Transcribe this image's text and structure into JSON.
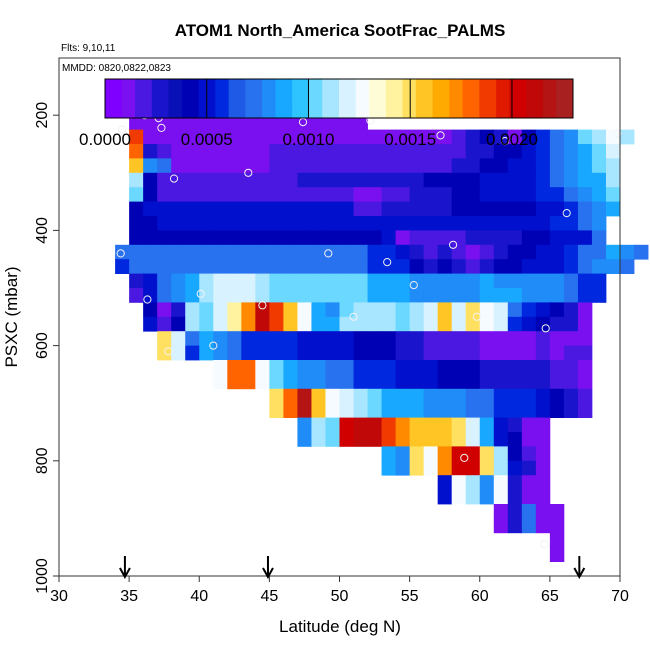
{
  "chart_data": {
    "type": "heatmap",
    "title": "ATOM1 North_America SootFrac_PALMS",
    "annotations": [
      "Flts: 9,10,11",
      "MMDD: 0820,0822,0823"
    ],
    "xlabel": "Latitude (deg N)",
    "ylabel": "PSXC (mbar)",
    "xlim": [
      30,
      70
    ],
    "ylim": [
      1000,
      0
    ],
    "x_ticks": [
      "30",
      "35",
      "40",
      "45",
      "50",
      "55",
      "60",
      "65",
      "70"
    ],
    "y_ticks": [
      "200",
      "400",
      "600",
      "800",
      "1000"
    ],
    "colorbar": {
      "range": [
        0,
        0.0023
      ],
      "tick_values": [
        0,
        0.0005,
        0.001,
        0.0015,
        0.002
      ],
      "tick_labels": [
        "0.0000",
        "0.0005",
        "0.0010",
        "0.0015",
        "0.0020"
      ]
    },
    "cell_size": {
      "lat": 1,
      "pressure": 25
    },
    "value_scale": 0.0001,
    "rows": [
      {
        "p": 175,
        "lat0": 35,
        "v": [
          1,
          1,
          1,
          1,
          1,
          1,
          1,
          1,
          1,
          1,
          1,
          1,
          1,
          1,
          1,
          1,
          1
        ]
      },
      {
        "p": 200,
        "lat0": 35,
        "v": [
          1,
          1,
          1,
          1,
          1,
          1,
          1,
          1,
          1,
          1,
          1,
          1,
          1,
          1,
          1,
          1,
          1
        ]
      },
      {
        "p": 225,
        "lat0": 35,
        "v": [
          19,
          1,
          1,
          1,
          1,
          1,
          1,
          1,
          1,
          1,
          1,
          1,
          1,
          1,
          1,
          1,
          1,
          1,
          1,
          1,
          1,
          1,
          1,
          2,
          3,
          4,
          3,
          1,
          4,
          6,
          7,
          8,
          10,
          11,
          13,
          11
        ]
      },
      {
        "p": 250,
        "lat0": 35,
        "v": [
          18,
          3,
          2,
          1,
          1,
          1,
          1,
          1,
          1,
          1,
          2,
          2,
          2,
          2,
          2,
          2,
          2,
          2,
          2,
          2,
          2,
          2,
          2,
          2,
          3,
          3,
          4,
          4,
          5,
          6,
          7,
          8,
          9,
          10,
          12
        ]
      },
      {
        "p": 275,
        "lat0": 35,
        "v": [
          16,
          8,
          7,
          1,
          1,
          1,
          1,
          1,
          1,
          1,
          2,
          2,
          2,
          2,
          2,
          2,
          2,
          2,
          2,
          2,
          2,
          2,
          2,
          3,
          3,
          4,
          4,
          5,
          5,
          6,
          7,
          8,
          9,
          10,
          11
        ]
      },
      {
        "p": 300,
        "lat0": 35,
        "v": [
          11,
          4,
          2,
          2,
          2,
          2,
          2,
          2,
          2,
          2,
          2,
          2,
          3,
          3,
          3,
          3,
          3,
          3,
          3,
          3,
          3,
          4,
          4,
          4,
          4,
          5,
          5,
          5,
          5,
          6,
          7,
          8,
          9,
          9,
          11
        ]
      },
      {
        "p": 325,
        "lat0": 35,
        "v": [
          10,
          4,
          2,
          2,
          2,
          2,
          2,
          2,
          2,
          2,
          2,
          2,
          2,
          2,
          2,
          2,
          1,
          1,
          2,
          2,
          3,
          3,
          3,
          4,
          4,
          5,
          5,
          5,
          5,
          6,
          6,
          7,
          8,
          9,
          10
        ]
      },
      {
        "p": 350,
        "lat0": 35,
        "v": [
          4,
          5,
          5,
          5,
          5,
          5,
          5,
          5,
          5,
          5,
          5,
          5,
          5,
          5,
          5,
          5,
          2,
          2,
          3,
          3,
          3,
          3,
          3,
          4,
          4,
          4,
          4,
          4,
          4,
          5,
          5,
          6,
          7,
          8,
          9
        ]
      },
      {
        "p": 375,
        "lat0": 35,
        "v": [
          4,
          4,
          5,
          5,
          5,
          5,
          5,
          5,
          5,
          5,
          5,
          5,
          5,
          5,
          5,
          5,
          5,
          5,
          5,
          5,
          5,
          5,
          5,
          5,
          5,
          5,
          5,
          5,
          5,
          5,
          6,
          6,
          7,
          8
        ]
      },
      {
        "p": 400,
        "lat0": 35,
        "v": [
          4,
          4,
          4,
          4,
          4,
          4,
          4,
          4,
          4,
          4,
          4,
          4,
          4,
          4,
          4,
          4,
          4,
          4,
          5,
          1,
          2,
          2,
          2,
          2,
          3,
          3,
          3,
          3,
          4,
          4,
          5,
          5,
          5,
          7
        ]
      },
      {
        "p": 425,
        "lat0": 34,
        "v": [
          7,
          7,
          7,
          7,
          7,
          7,
          7,
          7,
          7,
          7,
          7,
          7,
          7,
          7,
          7,
          7,
          7,
          7,
          6,
          6,
          5,
          3,
          2,
          3,
          2,
          1,
          2,
          3,
          4,
          4,
          5,
          5,
          6,
          7,
          7,
          9,
          8,
          7
        ]
      },
      {
        "p": 450,
        "lat0": 34,
        "v": [
          6,
          7,
          7,
          7,
          7,
          7,
          7,
          7,
          7,
          7,
          7,
          7,
          7,
          7,
          7,
          7,
          7,
          7,
          6,
          6,
          6,
          4,
          3,
          4,
          3,
          2,
          3,
          4,
          4,
          5,
          5,
          5,
          6,
          7,
          8,
          8,
          7
        ]
      },
      {
        "p": 475,
        "lat0": 35,
        "v": [
          3,
          5,
          7,
          8,
          9,
          11,
          12,
          12,
          12,
          11,
          10,
          10,
          10,
          10,
          10,
          10,
          10,
          9,
          9,
          9,
          8,
          8,
          8,
          8,
          8,
          9,
          8,
          8,
          8,
          8,
          8,
          7,
          6,
          6
        ]
      },
      {
        "p": 500,
        "lat0": 35,
        "v": [
          2,
          5,
          7,
          8,
          9,
          11,
          12,
          12,
          12,
          11,
          10,
          10,
          10,
          10,
          10,
          10,
          10,
          9,
          9,
          9,
          8,
          8,
          8,
          8,
          8,
          9,
          9,
          9,
          8,
          8,
          8,
          7,
          6,
          6
        ]
      },
      {
        "p": 525,
        "lat0": 36,
        "v": [
          4,
          1,
          3,
          11,
          10,
          12,
          14,
          17,
          21,
          19,
          16,
          13,
          9,
          8,
          10,
          11,
          11,
          11,
          10,
          11,
          12,
          16,
          12,
          15,
          13,
          12,
          7,
          6,
          5,
          4,
          3,
          1
        ]
      },
      {
        "p": 550,
        "lat0": 36,
        "v": [
          5,
          2,
          4,
          11,
          10,
          12,
          14,
          17,
          21,
          19,
          16,
          13,
          9,
          9,
          11,
          11,
          11,
          11,
          10,
          11,
          12,
          16,
          12,
          15,
          13,
          12,
          6,
          5,
          4,
          3,
          3,
          1
        ]
      },
      {
        "p": 575,
        "lat0": 37,
        "v": [
          15,
          12,
          7,
          9,
          8,
          7,
          6,
          6,
          6,
          6,
          5,
          5,
          5,
          5,
          4,
          4,
          4,
          3,
          3,
          2,
          2,
          2,
          2,
          1,
          1,
          1,
          1,
          2,
          1,
          1,
          1
        ]
      },
      {
        "p": 600,
        "lat0": 37,
        "v": [
          15,
          12,
          6,
          9,
          8,
          7,
          6,
          6,
          6,
          6,
          5,
          5,
          5,
          5,
          4,
          4,
          4,
          3,
          3,
          2,
          2,
          2,
          2,
          1,
          1,
          1,
          1,
          2,
          1,
          2,
          2
        ]
      },
      {
        "p": 625,
        "lat0": 41,
        "v": [
          13,
          18,
          18,
          13,
          10,
          9,
          8,
          8,
          7,
          7,
          6,
          6,
          6,
          5,
          5,
          5,
          4,
          4,
          4,
          3,
          3,
          3,
          3,
          3,
          2,
          2,
          1
        ]
      },
      {
        "p": 650,
        "lat0": 41,
        "v": [
          13,
          18,
          18,
          13,
          10,
          9,
          8,
          8,
          7,
          7,
          6,
          6,
          6,
          5,
          5,
          5,
          4,
          4,
          4,
          3,
          3,
          3,
          3,
          3,
          2,
          2,
          1
        ]
      },
      {
        "p": 675,
        "lat0": 45,
        "v": [
          15,
          18,
          22,
          16,
          13,
          12,
          11,
          10,
          9,
          9,
          9,
          8,
          8,
          8,
          7,
          7,
          6,
          6,
          6,
          5,
          4,
          3,
          2
        ]
      },
      {
        "p": 700,
        "lat0": 45,
        "v": [
          15,
          18,
          22,
          16,
          13,
          12,
          11,
          10,
          9,
          9,
          9,
          8,
          8,
          8,
          7,
          7,
          6,
          6,
          6,
          5,
          4,
          3,
          2
        ]
      },
      {
        "p": 725,
        "lat0": 47,
        "v": [
          8,
          11,
          10,
          20,
          21,
          21,
          19,
          17,
          16,
          16,
          16,
          15,
          12,
          9,
          5,
          3,
          1,
          1
        ]
      },
      {
        "p": 750,
        "lat0": 47,
        "v": [
          8,
          11,
          10,
          20,
          21,
          21,
          19,
          17,
          16,
          16,
          16,
          15,
          12,
          9,
          5,
          4,
          1,
          1
        ]
      },
      {
        "p": 775,
        "lat0": 53,
        "v": [
          9,
          8,
          15,
          13,
          17,
          20,
          20,
          15,
          11,
          4,
          2,
          1
        ]
      },
      {
        "p": 800,
        "lat0": 53,
        "v": [
          9,
          8,
          15,
          13,
          17,
          20,
          20,
          15,
          11,
          5,
          3,
          1
        ]
      },
      {
        "p": 825,
        "lat0": 57,
        "v": [
          5,
          13,
          11,
          8,
          13,
          3,
          1,
          1
        ]
      },
      {
        "p": 850,
        "lat0": 57,
        "v": [
          5,
          13,
          11,
          8,
          13,
          3,
          1,
          1
        ]
      },
      {
        "p": 875,
        "lat0": 61,
        "v": [
          1,
          3,
          7,
          1,
          1
        ]
      },
      {
        "p": 900,
        "lat0": 61,
        "v": [
          1,
          3,
          7,
          1,
          1
        ]
      },
      {
        "p": 925,
        "lat0": 65,
        "v": [
          1
        ]
      },
      {
        "p": 950,
        "lat0": 65,
        "v": [
          1
        ]
      }
    ],
    "points": [
      [
        34.5,
        225
      ],
      [
        35.7,
        187
      ],
      [
        36.1,
        200
      ],
      [
        36.7,
        187
      ],
      [
        37.1,
        205
      ],
      [
        37.3,
        222
      ],
      [
        38.2,
        310
      ],
      [
        43.5,
        300
      ],
      [
        47.4,
        212
      ],
      [
        52.2,
        209
      ],
      [
        57.2,
        235
      ],
      [
        61.8,
        245
      ],
      [
        34.4,
        440
      ],
      [
        36.3,
        520
      ],
      [
        37.8,
        610
      ],
      [
        40.1,
        510
      ],
      [
        41.0,
        600
      ],
      [
        44.5,
        530
      ],
      [
        49.2,
        440
      ],
      [
        51.0,
        550
      ],
      [
        53.4,
        455
      ],
      [
        55.3,
        495
      ],
      [
        58.1,
        425
      ],
      [
        59.8,
        550
      ],
      [
        66.2,
        370
      ],
      [
        69.8,
        232
      ],
      [
        64.7,
        570
      ],
      [
        58.9,
        795
      ],
      [
        64.6,
        945
      ]
    ],
    "arrows": [
      34.7,
      44.9,
      67.1
    ],
    "colormap": [
      "#8000ff",
      "#7a10f0",
      "#4a18e0",
      "#1a14cc",
      "#0a10b8",
      "#0000b4",
      "#0010cc",
      "#0028de",
      "#1f5ae6",
      "#2872f0",
      "#1f8cf8",
      "#19a8ff",
      "#2ec4ff",
      "#6ad8ff",
      "#a8e6ff",
      "#d8f2ff",
      "#f6fbff",
      "#fefcd6",
      "#fff3a0",
      "#ffe060",
      "#ffc524",
      "#ffaa00",
      "#ff8a00",
      "#ff6400",
      "#f03a00",
      "#e01a00",
      "#d00000",
      "#c00808",
      "#b41414",
      "#a82020"
    ]
  }
}
